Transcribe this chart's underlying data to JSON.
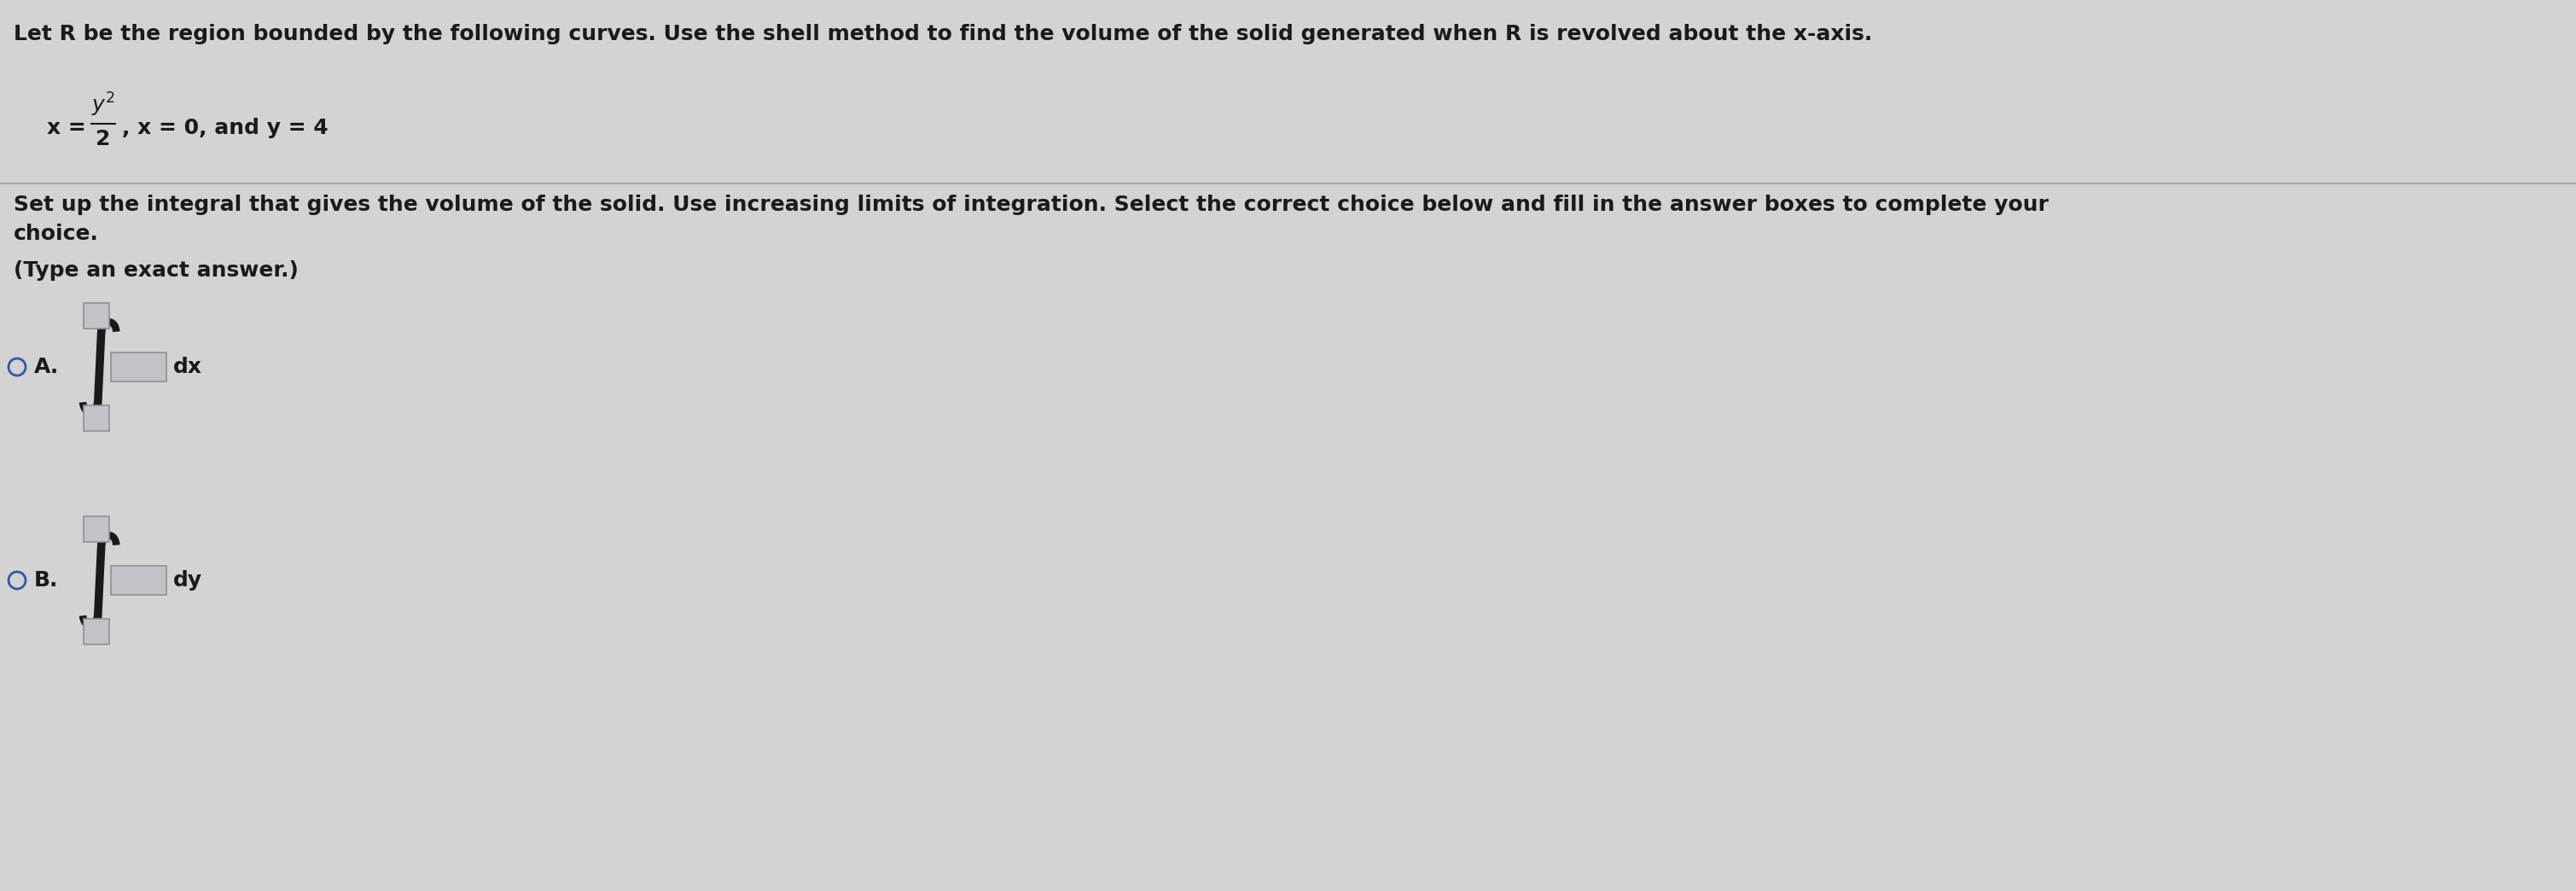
{
  "bg_color": "#d3d3d3",
  "text_color": "#1a1a1a",
  "title_text": "Let R be the region bounded by the following curves. Use the shell method to find the volume of the solid generated when R is revolved about the x-axis.",
  "equation_x_prefix": "x =",
  "equation_fraction_num": "y",
  "equation_fraction_exp": "2",
  "equation_fraction_den": "2",
  "equation_suffix": ", x = 0, and y = 4",
  "setup_line1": "Set up the integral that gives the volume of the solid. Use increasing limits of integration. Select the correct choice below and fill in the answer boxes to complete your",
  "setup_line2": "choice.",
  "type_note": "(Type an exact answer.)",
  "option_A_label": "A.",
  "option_A_suffix": "dx",
  "option_B_label": "B.",
  "option_B_suffix": "dy",
  "circle_color": "#3355aa",
  "box_fill_color": "#c0c4c8",
  "box_edge_color": "#909090",
  "separator_color": "#aaaaaa",
  "title_fontsize": 18,
  "body_fontsize": 18,
  "small_fontsize": 16,
  "integral_fontsize": 60,
  "label_fontsize": 18
}
